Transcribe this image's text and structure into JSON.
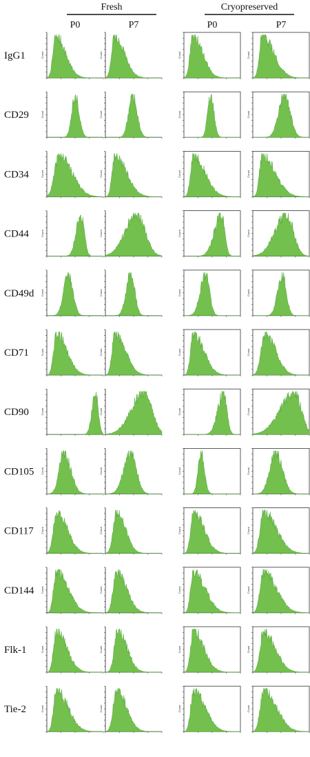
{
  "figure": {
    "groups": [
      {
        "label": "Fresh",
        "columns": [
          "P0",
          "P7"
        ]
      },
      {
        "label": "Cryopreserved",
        "columns": [
          "P0",
          "P7"
        ]
      }
    ],
    "y_axis_label": "Count",
    "colors": {
      "fill": "#6dbd45",
      "edge": "#3f9a28",
      "axis": "#222222",
      "frame": "#333333"
    }
  },
  "chart_data": {
    "type": "histogram-grid",
    "xscale": "log",
    "markers": [
      "CD29",
      "IgG1",
      "CD34",
      "CD44",
      "CD49d",
      "CD71",
      "CD90",
      "CD105",
      "CD117",
      "CD144",
      "Flk-1",
      "Tie-2"
    ],
    "rows": [
      {
        "marker": "IgG1",
        "peaks": [
          {
            "mu": 0.16,
            "sl": 0.05,
            "sr": 0.17
          },
          {
            "mu": 0.16,
            "sl": 0.05,
            "sr": 0.17
          },
          {
            "mu": 0.16,
            "sl": 0.05,
            "sr": 0.17
          },
          {
            "mu": 0.17,
            "sl": 0.05,
            "sr": 0.2
          }
        ]
      },
      {
        "marker": "CD29",
        "peaks": [
          {
            "mu": 0.5,
            "sl": 0.06,
            "sr": 0.07
          },
          {
            "mu": 0.48,
            "sl": 0.07,
            "sr": 0.08
          },
          {
            "mu": 0.47,
            "sl": 0.05,
            "sr": 0.06
          },
          {
            "mu": 0.56,
            "sl": 0.1,
            "sr": 0.1
          }
        ]
      },
      {
        "marker": "CD34",
        "peaks": [
          {
            "mu": 0.22,
            "sl": 0.08,
            "sr": 0.22
          },
          {
            "mu": 0.17,
            "sl": 0.05,
            "sr": 0.2
          },
          {
            "mu": 0.17,
            "sl": 0.05,
            "sr": 0.2
          },
          {
            "mu": 0.17,
            "sl": 0.05,
            "sr": 0.22
          }
        ]
      },
      {
        "marker": "CD44",
        "peaks": [
          {
            "mu": 0.6,
            "sl": 0.08,
            "sr": 0.06
          },
          {
            "mu": 0.55,
            "sl": 0.2,
            "sr": 0.15
          },
          {
            "mu": 0.66,
            "sl": 0.12,
            "sr": 0.06
          },
          {
            "mu": 0.6,
            "sl": 0.2,
            "sr": 0.12
          }
        ]
      },
      {
        "marker": "CD49d",
        "peaks": [
          {
            "mu": 0.38,
            "sl": 0.08,
            "sr": 0.08
          },
          {
            "mu": 0.45,
            "sl": 0.08,
            "sr": 0.07
          },
          {
            "mu": 0.38,
            "sl": 0.09,
            "sr": 0.07
          },
          {
            "mu": 0.52,
            "sl": 0.08,
            "sr": 0.07
          }
        ]
      },
      {
        "marker": "CD71",
        "peaks": [
          {
            "mu": 0.17,
            "sl": 0.05,
            "sr": 0.18
          },
          {
            "mu": 0.17,
            "sl": 0.05,
            "sr": 0.18
          },
          {
            "mu": 0.17,
            "sl": 0.05,
            "sr": 0.18
          },
          {
            "mu": 0.22,
            "sl": 0.07,
            "sr": 0.18
          }
        ]
      },
      {
        "marker": "CD90",
        "peaks": [
          {
            "mu": 0.86,
            "sl": 0.06,
            "sr": 0.05
          },
          {
            "mu": 0.68,
            "sl": 0.22,
            "sr": 0.14
          },
          {
            "mu": 0.7,
            "sl": 0.1,
            "sr": 0.06
          },
          {
            "mu": 0.74,
            "sl": 0.25,
            "sr": 0.12
          }
        ]
      },
      {
        "marker": "CD105",
        "peaks": [
          {
            "mu": 0.3,
            "sl": 0.08,
            "sr": 0.12
          },
          {
            "mu": 0.45,
            "sl": 0.12,
            "sr": 0.1
          },
          {
            "mu": 0.3,
            "sl": 0.05,
            "sr": 0.06
          },
          {
            "mu": 0.4,
            "sl": 0.1,
            "sr": 0.12
          }
        ]
      },
      {
        "marker": "CD117",
        "peaks": [
          {
            "mu": 0.18,
            "sl": 0.06,
            "sr": 0.18
          },
          {
            "mu": 0.2,
            "sl": 0.06,
            "sr": 0.15
          },
          {
            "mu": 0.17,
            "sl": 0.05,
            "sr": 0.18
          },
          {
            "mu": 0.19,
            "sl": 0.06,
            "sr": 0.22
          }
        ]
      },
      {
        "marker": "CD144",
        "peaks": [
          {
            "mu": 0.17,
            "sl": 0.05,
            "sr": 0.2
          },
          {
            "mu": 0.2,
            "sl": 0.06,
            "sr": 0.17
          },
          {
            "mu": 0.17,
            "sl": 0.05,
            "sr": 0.2
          },
          {
            "mu": 0.19,
            "sl": 0.06,
            "sr": 0.22
          }
        ]
      },
      {
        "marker": "Flk-1",
        "peaks": [
          {
            "mu": 0.17,
            "sl": 0.05,
            "sr": 0.18
          },
          {
            "mu": 0.22,
            "sl": 0.06,
            "sr": 0.16
          },
          {
            "mu": 0.17,
            "sl": 0.05,
            "sr": 0.18
          },
          {
            "mu": 0.19,
            "sl": 0.06,
            "sr": 0.2
          }
        ]
      },
      {
        "marker": "Tie-2",
        "peaks": [
          {
            "mu": 0.17,
            "sl": 0.05,
            "sr": 0.2
          },
          {
            "mu": 0.2,
            "sl": 0.06,
            "sr": 0.17
          },
          {
            "mu": 0.17,
            "sl": 0.05,
            "sr": 0.2
          },
          {
            "mu": 0.19,
            "sl": 0.06,
            "sr": 0.22
          }
        ]
      }
    ]
  }
}
